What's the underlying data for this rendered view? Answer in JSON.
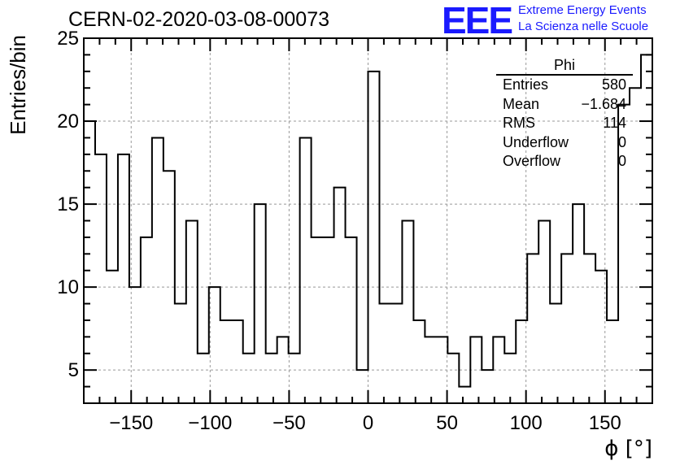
{
  "chart_data": {
    "type": "histogram",
    "title": "CERN-02-2020-03-08-00073",
    "xlabel": "ϕ [°]",
    "ylabel": "Entries/bin",
    "xlim": [
      -180,
      180
    ],
    "ylim": [
      3,
      25
    ],
    "xticks": [
      -150,
      -100,
      -50,
      0,
      50,
      100,
      150
    ],
    "yticks": [
      5,
      10,
      15,
      20,
      25
    ],
    "grid": true,
    "bin_width": 7.2,
    "bin_low_edges": [
      -180,
      -172.8,
      -165.6,
      -158.4,
      -151.2,
      -144,
      -136.8,
      -129.6,
      -122.4,
      -115.2,
      -108,
      -100.8,
      -93.6,
      -86.4,
      -79.2,
      -72,
      -64.8,
      -57.6,
      -50.4,
      -43.2,
      -36,
      -28.8,
      -21.6,
      -14.4,
      -7.2,
      0,
      7.2,
      14.4,
      21.6,
      28.8,
      36,
      43.2,
      50.4,
      57.6,
      64.8,
      72,
      79.2,
      86.4,
      93.6,
      100.8,
      108,
      115.2,
      122.4,
      129.6,
      136.8,
      144,
      151.2,
      158.4,
      165.6,
      172.8
    ],
    "values": [
      20,
      18,
      11,
      18,
      10,
      13,
      19,
      17,
      9,
      14,
      6,
      10,
      8,
      8,
      6,
      15,
      6,
      7,
      6,
      19,
      13,
      13,
      16,
      13,
      5,
      23,
      9,
      9,
      14,
      8,
      7,
      7,
      6,
      4,
      7,
      5,
      7,
      6,
      8,
      12,
      14,
      9,
      12,
      15,
      12,
      11,
      8,
      21,
      22,
      24
    ],
    "stats": {
      "title": "Phi",
      "rows": [
        {
          "label": "Entries",
          "value": "580"
        },
        {
          "label": "Mean",
          "value": "−1.684"
        },
        {
          "label": "RMS",
          "value": "114"
        },
        {
          "label": "Underflow",
          "value": "0"
        },
        {
          "label": "Overflow",
          "value": "0"
        }
      ]
    },
    "colors": {
      "line": "#000000",
      "grid": "#999999",
      "logo": "#1a1aff"
    }
  },
  "logo": {
    "text": "EEE",
    "line1": "Extreme Energy Events",
    "line2": "La Scienza nelle Scuole"
  }
}
